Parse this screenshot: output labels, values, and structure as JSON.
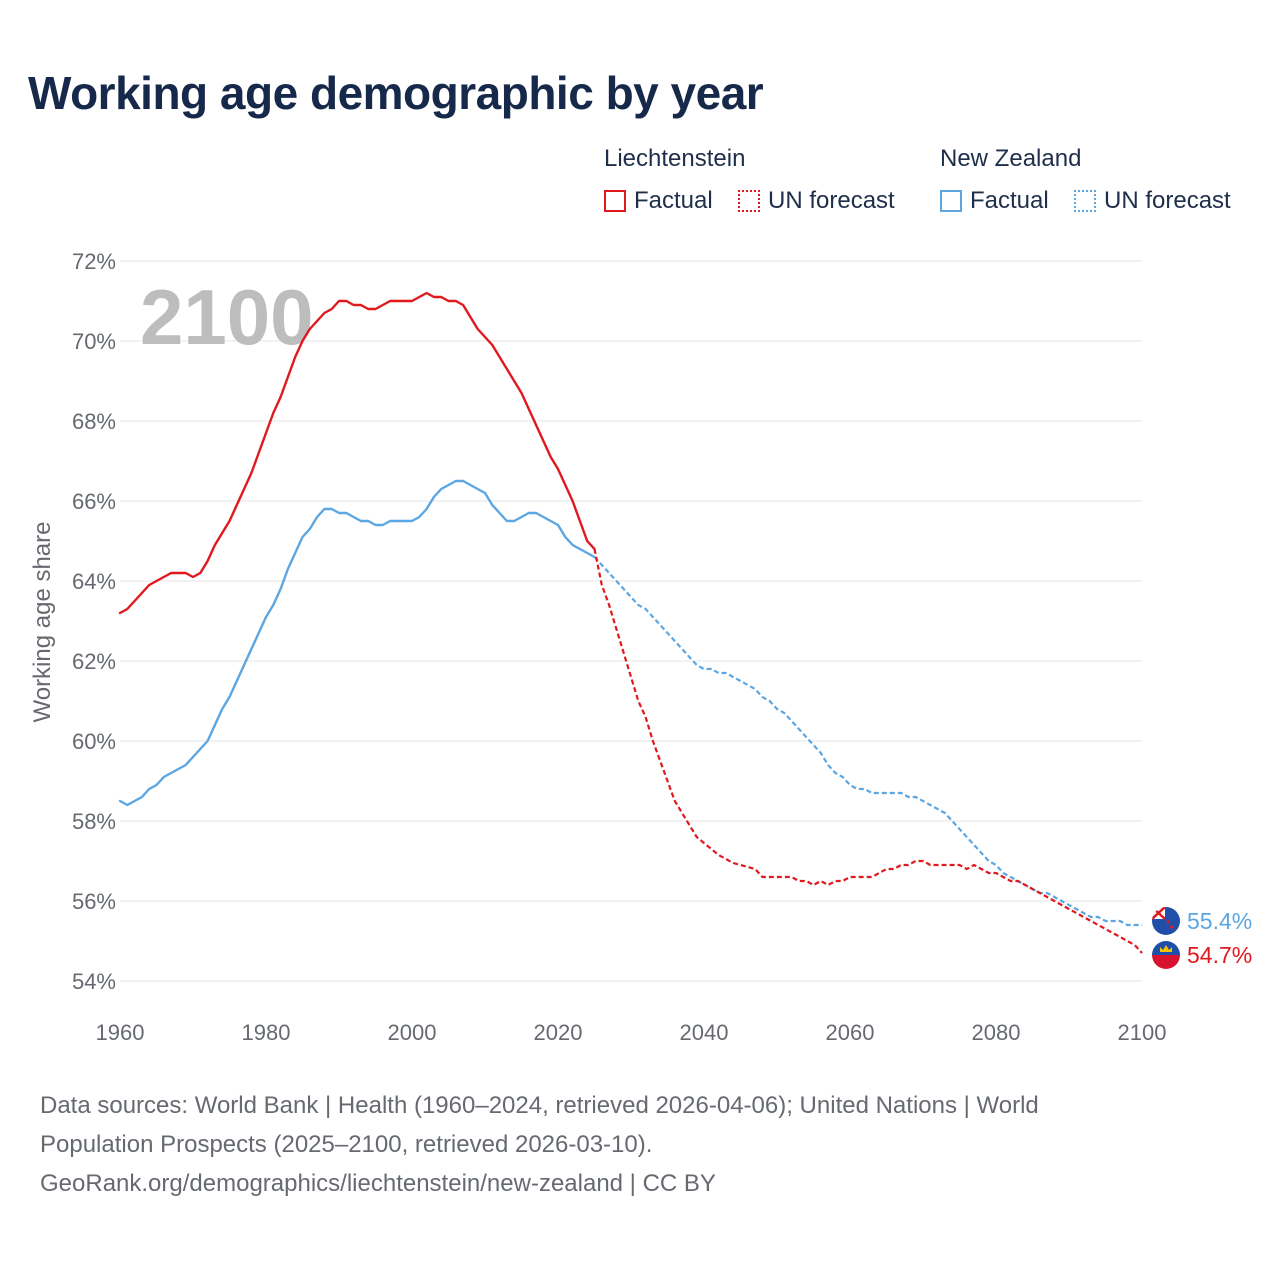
{
  "title": "Working age demographic by year",
  "legend": {
    "groups": [
      {
        "name": "Liechtenstein",
        "color": "#e0191e",
        "factual_label": "Factual",
        "forecast_label": "UN forecast"
      },
      {
        "name": "New Zealand",
        "color": "#5ca6e2",
        "factual_label": "Factual",
        "forecast_label": "UN forecast"
      }
    ]
  },
  "chart_data": {
    "type": "line",
    "title": "Working age demographic by year",
    "xlabel": "",
    "ylabel": "Working age share",
    "xlim": [
      1960,
      2100
    ],
    "ylim": [
      54,
      72
    ],
    "x_ticks": [
      "1960",
      "1980",
      "2000",
      "2020",
      "2040",
      "2060",
      "2080",
      "2100"
    ],
    "y_ticks": [
      "54%",
      "56%",
      "58%",
      "60%",
      "62%",
      "64%",
      "66%",
      "68%",
      "70%",
      "72%"
    ],
    "year_watermark": "2100",
    "series": [
      {
        "name": "Liechtenstein",
        "color": "#e0191e",
        "end_label": "54.7%",
        "factual": [
          [
            1960,
            63.2
          ],
          [
            1961,
            63.3
          ],
          [
            1962,
            63.5
          ],
          [
            1963,
            63.7
          ],
          [
            1964,
            63.9
          ],
          [
            1965,
            64.0
          ],
          [
            1966,
            64.1
          ],
          [
            1967,
            64.2
          ],
          [
            1968,
            64.2
          ],
          [
            1969,
            64.2
          ],
          [
            1970,
            64.1
          ],
          [
            1971,
            64.2
          ],
          [
            1972,
            64.5
          ],
          [
            1973,
            64.9
          ],
          [
            1974,
            65.2
          ],
          [
            1975,
            65.5
          ],
          [
            1976,
            65.9
          ],
          [
            1977,
            66.3
          ],
          [
            1978,
            66.7
          ],
          [
            1979,
            67.2
          ],
          [
            1980,
            67.7
          ],
          [
            1981,
            68.2
          ],
          [
            1982,
            68.6
          ],
          [
            1983,
            69.1
          ],
          [
            1984,
            69.6
          ],
          [
            1985,
            70.0
          ],
          [
            1986,
            70.3
          ],
          [
            1987,
            70.5
          ],
          [
            1988,
            70.7
          ],
          [
            1989,
            70.8
          ],
          [
            1990,
            71.0
          ],
          [
            1991,
            71.0
          ],
          [
            1992,
            70.9
          ],
          [
            1993,
            70.9
          ],
          [
            1994,
            70.8
          ],
          [
            1995,
            70.8
          ],
          [
            1996,
            70.9
          ],
          [
            1997,
            71.0
          ],
          [
            1998,
            71.0
          ],
          [
            1999,
            71.0
          ],
          [
            2000,
            71.0
          ],
          [
            2001,
            71.1
          ],
          [
            2002,
            71.2
          ],
          [
            2003,
            71.1
          ],
          [
            2004,
            71.1
          ],
          [
            2005,
            71.0
          ],
          [
            2006,
            71.0
          ],
          [
            2007,
            70.9
          ],
          [
            2008,
            70.6
          ],
          [
            2009,
            70.3
          ],
          [
            2010,
            70.1
          ],
          [
            2011,
            69.9
          ],
          [
            2012,
            69.6
          ],
          [
            2013,
            69.3
          ],
          [
            2014,
            69.0
          ],
          [
            2015,
            68.7
          ],
          [
            2016,
            68.3
          ],
          [
            2017,
            67.9
          ],
          [
            2018,
            67.5
          ],
          [
            2019,
            67.1
          ],
          [
            2020,
            66.8
          ],
          [
            2021,
            66.4
          ],
          [
            2022,
            66.0
          ],
          [
            2023,
            65.5
          ],
          [
            2024,
            65.0
          ],
          [
            2025,
            64.8
          ]
        ],
        "forecast": [
          [
            2025,
            64.8
          ],
          [
            2026,
            63.9
          ],
          [
            2027,
            63.4
          ],
          [
            2028,
            62.8
          ],
          [
            2029,
            62.2
          ],
          [
            2030,
            61.6
          ],
          [
            2031,
            61.0
          ],
          [
            2032,
            60.6
          ],
          [
            2033,
            60.0
          ],
          [
            2034,
            59.5
          ],
          [
            2035,
            59.0
          ],
          [
            2036,
            58.5
          ],
          [
            2037,
            58.2
          ],
          [
            2038,
            57.9
          ],
          [
            2039,
            57.6
          ],
          [
            2040,
            57.45
          ],
          [
            2041,
            57.3
          ],
          [
            2042,
            57.15
          ],
          [
            2043,
            57.05
          ],
          [
            2044,
            56.95
          ],
          [
            2045,
            56.9
          ],
          [
            2046,
            56.85
          ],
          [
            2047,
            56.8
          ],
          [
            2048,
            56.6
          ],
          [
            2049,
            56.6
          ],
          [
            2050,
            56.6
          ],
          [
            2051,
            56.6
          ],
          [
            2052,
            56.6
          ],
          [
            2053,
            56.5
          ],
          [
            2054,
            56.5
          ],
          [
            2055,
            56.4
          ],
          [
            2056,
            56.5
          ],
          [
            2057,
            56.4
          ],
          [
            2058,
            56.5
          ],
          [
            2059,
            56.5
          ],
          [
            2060,
            56.6
          ],
          [
            2061,
            56.6
          ],
          [
            2062,
            56.6
          ],
          [
            2063,
            56.6
          ],
          [
            2064,
            56.7
          ],
          [
            2065,
            56.8
          ],
          [
            2066,
            56.8
          ],
          [
            2067,
            56.9
          ],
          [
            2068,
            56.9
          ],
          [
            2069,
            57.0
          ],
          [
            2070,
            57.0
          ],
          [
            2071,
            56.9
          ],
          [
            2072,
            56.9
          ],
          [
            2073,
            56.9
          ],
          [
            2074,
            56.9
          ],
          [
            2075,
            56.9
          ],
          [
            2076,
            56.8
          ],
          [
            2077,
            56.9
          ],
          [
            2078,
            56.8
          ],
          [
            2079,
            56.7
          ],
          [
            2080,
            56.7
          ],
          [
            2081,
            56.6
          ],
          [
            2082,
            56.5
          ],
          [
            2083,
            56.5
          ],
          [
            2084,
            56.4
          ],
          [
            2085,
            56.3
          ],
          [
            2086,
            56.2
          ],
          [
            2087,
            56.1
          ],
          [
            2088,
            56.0
          ],
          [
            2089,
            55.9
          ],
          [
            2090,
            55.8
          ],
          [
            2091,
            55.7
          ],
          [
            2092,
            55.6
          ],
          [
            2093,
            55.5
          ],
          [
            2094,
            55.4
          ],
          [
            2095,
            55.3
          ],
          [
            2096,
            55.2
          ],
          [
            2097,
            55.1
          ],
          [
            2098,
            55.0
          ],
          [
            2099,
            54.9
          ],
          [
            2100,
            54.7
          ]
        ]
      },
      {
        "name": "New Zealand",
        "color": "#5ca6e2",
        "end_label": "55.4%",
        "factual": [
          [
            1960,
            58.5
          ],
          [
            1961,
            58.4
          ],
          [
            1962,
            58.5
          ],
          [
            1963,
            58.6
          ],
          [
            1964,
            58.8
          ],
          [
            1965,
            58.9
          ],
          [
            1966,
            59.1
          ],
          [
            1967,
            59.2
          ],
          [
            1968,
            59.3
          ],
          [
            1969,
            59.4
          ],
          [
            1970,
            59.6
          ],
          [
            1971,
            59.8
          ],
          [
            1972,
            60.0
          ],
          [
            1973,
            60.4
          ],
          [
            1974,
            60.8
          ],
          [
            1975,
            61.1
          ],
          [
            1976,
            61.5
          ],
          [
            1977,
            61.9
          ],
          [
            1978,
            62.3
          ],
          [
            1979,
            62.7
          ],
          [
            1980,
            63.1
          ],
          [
            1981,
            63.4
          ],
          [
            1982,
            63.8
          ],
          [
            1983,
            64.3
          ],
          [
            1984,
            64.7
          ],
          [
            1985,
            65.1
          ],
          [
            1986,
            65.3
          ],
          [
            1987,
            65.6
          ],
          [
            1988,
            65.8
          ],
          [
            1989,
            65.8
          ],
          [
            1990,
            65.7
          ],
          [
            1991,
            65.7
          ],
          [
            1992,
            65.6
          ],
          [
            1993,
            65.5
          ],
          [
            1994,
            65.5
          ],
          [
            1995,
            65.4
          ],
          [
            1996,
            65.4
          ],
          [
            1997,
            65.5
          ],
          [
            1998,
            65.5
          ],
          [
            1999,
            65.5
          ],
          [
            2000,
            65.5
          ],
          [
            2001,
            65.6
          ],
          [
            2002,
            65.8
          ],
          [
            2003,
            66.1
          ],
          [
            2004,
            66.3
          ],
          [
            2005,
            66.4
          ],
          [
            2006,
            66.5
          ],
          [
            2007,
            66.5
          ],
          [
            2008,
            66.4
          ],
          [
            2009,
            66.3
          ],
          [
            2010,
            66.2
          ],
          [
            2011,
            65.9
          ],
          [
            2012,
            65.7
          ],
          [
            2013,
            65.5
          ],
          [
            2014,
            65.5
          ],
          [
            2015,
            65.6
          ],
          [
            2016,
            65.7
          ],
          [
            2017,
            65.7
          ],
          [
            2018,
            65.6
          ],
          [
            2019,
            65.5
          ],
          [
            2020,
            65.4
          ],
          [
            2021,
            65.1
          ],
          [
            2022,
            64.9
          ],
          [
            2023,
            64.8
          ],
          [
            2024,
            64.7
          ],
          [
            2025,
            64.6
          ]
        ],
        "forecast": [
          [
            2025,
            64.6
          ],
          [
            2026,
            64.4
          ],
          [
            2027,
            64.2
          ],
          [
            2028,
            64.0
          ],
          [
            2029,
            63.8
          ],
          [
            2030,
            63.6
          ],
          [
            2031,
            63.4
          ],
          [
            2032,
            63.3
          ],
          [
            2033,
            63.1
          ],
          [
            2034,
            62.9
          ],
          [
            2035,
            62.7
          ],
          [
            2036,
            62.5
          ],
          [
            2037,
            62.3
          ],
          [
            2038,
            62.1
          ],
          [
            2039,
            61.9
          ],
          [
            2040,
            61.8
          ],
          [
            2041,
            61.8
          ],
          [
            2042,
            61.7
          ],
          [
            2043,
            61.7
          ],
          [
            2044,
            61.6
          ],
          [
            2045,
            61.5
          ],
          [
            2046,
            61.4
          ],
          [
            2047,
            61.3
          ],
          [
            2048,
            61.1
          ],
          [
            2049,
            61.0
          ],
          [
            2050,
            60.8
          ],
          [
            2051,
            60.7
          ],
          [
            2052,
            60.5
          ],
          [
            2053,
            60.3
          ],
          [
            2054,
            60.1
          ],
          [
            2055,
            59.9
          ],
          [
            2056,
            59.7
          ],
          [
            2057,
            59.4
          ],
          [
            2058,
            59.2
          ],
          [
            2059,
            59.1
          ],
          [
            2060,
            58.9
          ],
          [
            2061,
            58.8
          ],
          [
            2062,
            58.8
          ],
          [
            2063,
            58.7
          ],
          [
            2064,
            58.7
          ],
          [
            2065,
            58.7
          ],
          [
            2066,
            58.7
          ],
          [
            2067,
            58.7
          ],
          [
            2068,
            58.6
          ],
          [
            2069,
            58.6
          ],
          [
            2070,
            58.5
          ],
          [
            2071,
            58.4
          ],
          [
            2072,
            58.3
          ],
          [
            2073,
            58.2
          ],
          [
            2074,
            58.0
          ],
          [
            2075,
            57.8
          ],
          [
            2076,
            57.6
          ],
          [
            2077,
            57.4
          ],
          [
            2078,
            57.2
          ],
          [
            2079,
            57.0
          ],
          [
            2080,
            56.9
          ],
          [
            2081,
            56.7
          ],
          [
            2082,
            56.6
          ],
          [
            2083,
            56.5
          ],
          [
            2084,
            56.4
          ],
          [
            2085,
            56.3
          ],
          [
            2086,
            56.2
          ],
          [
            2087,
            56.2
          ],
          [
            2088,
            56.1
          ],
          [
            2089,
            56.0
          ],
          [
            2090,
            55.9
          ],
          [
            2091,
            55.8
          ],
          [
            2092,
            55.7
          ],
          [
            2093,
            55.6
          ],
          [
            2094,
            55.6
          ],
          [
            2095,
            55.5
          ],
          [
            2096,
            55.5
          ],
          [
            2097,
            55.5
          ],
          [
            2098,
            55.4
          ],
          [
            2099,
            55.4
          ],
          [
            2100,
            55.4
          ]
        ]
      }
    ]
  },
  "footer": {
    "line1": "Data sources: World Bank | Health (1960–2024, retrieved 2026-04-06); United Nations | World",
    "line2": "Population Prospects (2025–2100, retrieved 2026-03-10).",
    "line3": "GeoRank.org/demographics/liechtenstein/new-zealand | CC BY"
  }
}
